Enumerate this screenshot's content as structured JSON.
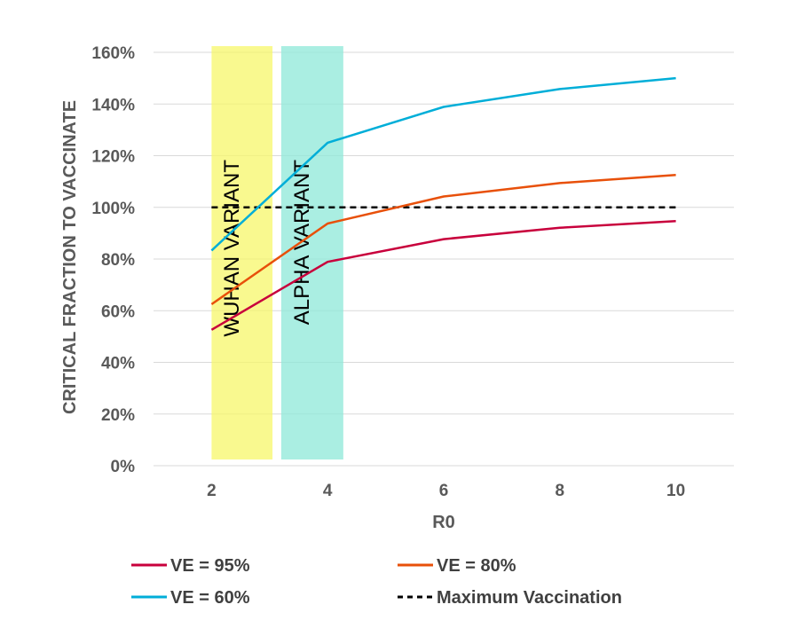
{
  "chart_data": {
    "type": "line",
    "title": "",
    "xlabel": "R0",
    "ylabel": "CRITICAL FRACTION TO VACCINATE",
    "x_ticks": [
      2,
      4,
      6,
      8,
      10
    ],
    "x_tick_labels": [
      "2",
      "4",
      "6",
      "8",
      "10"
    ],
    "xlim": [
      1,
      11
    ],
    "ylim": [
      0,
      160
    ],
    "y_ticks": [
      0,
      20,
      40,
      60,
      80,
      100,
      120,
      140,
      160
    ],
    "y_tick_labels": [
      "0%",
      "20%",
      "40%",
      "60%",
      "80%",
      "100%",
      "120%",
      "140%",
      "160%"
    ],
    "grid": "horizontal",
    "x": [
      2,
      4,
      6,
      8,
      10
    ],
    "series": [
      {
        "name": "VE = 95%",
        "color": "#c8003c",
        "dash": false,
        "values": [
          52.6,
          78.9,
          87.7,
          92.1,
          94.7
        ]
      },
      {
        "name": "VE = 80%",
        "color": "#e8500a",
        "dash": false,
        "values": [
          62.5,
          93.75,
          104.2,
          109.4,
          112.5
        ]
      },
      {
        "name": "VE = 60%",
        "color": "#00aed8",
        "dash": false,
        "values": [
          83.3,
          125.0,
          138.9,
          145.8,
          150.0
        ]
      },
      {
        "name": "Maximum Vaccination",
        "color": "#000000",
        "dash": true,
        "values": [
          100,
          100,
          100,
          100,
          100
        ]
      }
    ],
    "bands": [
      {
        "label": "WUHAN VARIANT",
        "x0": 2.0,
        "x1": 3.05,
        "color": "#f7f76a"
      },
      {
        "label": "ALPHA VARIANT",
        "x0": 3.2,
        "x1": 4.27,
        "color": "#8ee8d8"
      }
    ],
    "legend": {
      "placement": "bottom",
      "columns": 2
    }
  }
}
